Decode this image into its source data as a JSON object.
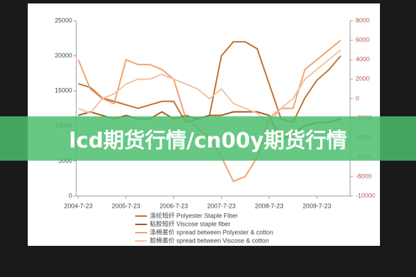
{
  "chart_data": {
    "type": "line",
    "categories": [
      "2004-7-23",
      null,
      null,
      null,
      "2005-7-23",
      null,
      null,
      null,
      "2006-7-23",
      null,
      null,
      null,
      "2007-7-23",
      null,
      null,
      null,
      "2008-7-23",
      null,
      null,
      null,
      "2009-7-23",
      null,
      null
    ],
    "ylim": [
      0,
      25000
    ],
    "yticks": [
      0,
      5000,
      10000,
      15000,
      20000,
      25000
    ],
    "y2lim": [
      -10000,
      8000
    ],
    "y2ticks": [
      -10000,
      -8000,
      -6000,
      -4000,
      -2000,
      0,
      2000,
      4000,
      6000,
      8000
    ],
    "series": [
      {
        "name": "涤纶短纤 Polyester Staple Fiber",
        "color": "#c0702a",
        "values": [
          16000,
          15500,
          14000,
          13500,
          13000,
          12500,
          13000,
          13500,
          13500,
          10500,
          11000,
          11500,
          20000,
          22000,
          22000,
          21000,
          16000,
          11000,
          10500,
          14000,
          16500,
          18000,
          20000
        ]
      },
      {
        "name": "粘胶短纤 Viscose staple fiber",
        "color": "#9a5a20",
        "values": [
          11500,
          12000,
          11500,
          11000,
          11500,
          11000,
          11000,
          12000,
          11000,
          11500,
          11000,
          11500,
          11500,
          12000,
          12000,
          12000,
          11500,
          8000,
          9000,
          10000,
          10500,
          10500,
          11000
        ]
      },
      {
        "name": "涤棉差价 spread between Polyester & cotton",
        "color": "#f0a070",
        "axis": "y2",
        "values": [
          4000,
          1000,
          0,
          -500,
          4000,
          3500,
          3500,
          3000,
          2000,
          -2000,
          -3000,
          -4000,
          -6000,
          -8500,
          -8000,
          -6000,
          -2000,
          -1000,
          -1000,
          3000,
          4000,
          5000,
          6000
        ]
      },
      {
        "name": "胶棉差价 spread between Viscose & cotton",
        "color": "#f5c0a0",
        "axis": "y2",
        "values": [
          -1000,
          -1500,
          0,
          500,
          1500,
          2000,
          2000,
          2500,
          2000,
          1500,
          1000,
          0,
          1000,
          -500,
          -1000,
          -1500,
          -2500,
          -1000,
          0,
          2000,
          3000,
          4000,
          5000
        ]
      }
    ]
  },
  "banner": "lcd期货行情/cn00y期货行情"
}
